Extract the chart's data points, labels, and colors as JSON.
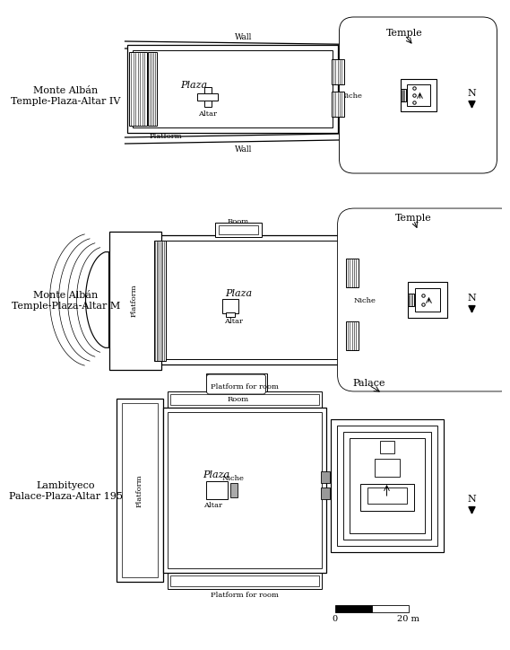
{
  "bg_color": "#ffffff",
  "line_color": "#000000",
  "gray_fill": "#999999",
  "diagram1": {
    "label": "Monte Albán\nTemple-Plaza-Altar IV",
    "temple_label": "Temple",
    "wall_label": "Wall",
    "plaza_label": "Plaza",
    "altar_label": "Altar",
    "niche_label": "Niche",
    "platform_label": "Platform"
  },
  "diagram2": {
    "label": "Monte Albán\nTemple-Plaza-Altar M",
    "temple_label": "Temple",
    "room_label": "Room",
    "plaza_label": "Plaza",
    "altar_label": "Altar",
    "niche_label": "Niche",
    "platform_label": "Platform"
  },
  "diagram3": {
    "label": "Lambityeco\nPalace-Plaza-Altar 195",
    "palace_label": "Palace",
    "plaza_label": "Plaza",
    "altar_label": "Altar",
    "niche_label": "Niche",
    "platform_label": "Platform",
    "pfr_label": "Platform for room"
  },
  "scale_label_0": "0",
  "scale_label_20": "20 m"
}
